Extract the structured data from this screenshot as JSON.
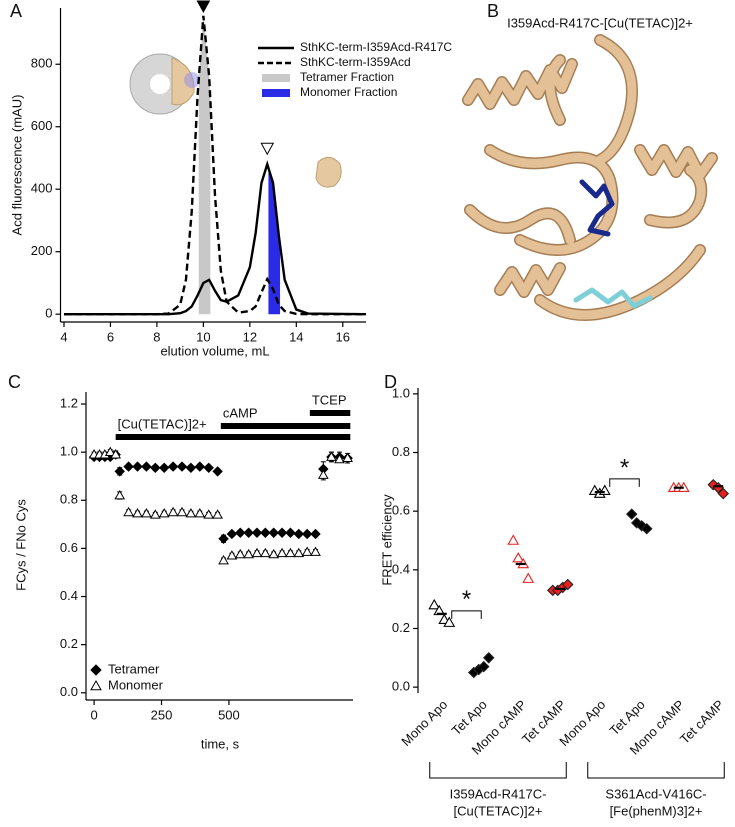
{
  "structure": {
    "panel_label": "B",
    "title": "I359Acd-R417C-[Cu(TETAC)]2+"
  },
  "chart_data": [
    {
      "type": "line",
      "panel_label": "A",
      "x_label": "elution volume,  mL",
      "y_label": "Acd fluorescence (mAU)",
      "xlim": [
        3.85,
        17
      ],
      "xticks": [
        4,
        6,
        8,
        10,
        12,
        14,
        16
      ],
      "ylim": [
        -25,
        980
      ],
      "yticks": [
        0,
        200,
        400,
        600,
        800
      ],
      "x": [
        4,
        8,
        8.5,
        9,
        9.25,
        9.5,
        9.75,
        10,
        10.25,
        10.5,
        10.75,
        11,
        11.5,
        12,
        12.25,
        12.5,
        12.75,
        13,
        13.25,
        13.5,
        14,
        14.5,
        17
      ],
      "series": [
        {
          "name": "SthKC-term-I359Acd-R417C",
          "color": "#000000",
          "line_style": "solid",
          "values": [
            0,
            0,
            0,
            3,
            10,
            25,
            60,
            100,
            110,
            75,
            45,
            40,
            60,
            150,
            260,
            420,
            480,
            420,
            250,
            110,
            15,
            2,
            0
          ]
        },
        {
          "name": "SthKC-term-I359Acd",
          "color": "#000000",
          "line_style": "dashed",
          "values": [
            0,
            0,
            2,
            30,
            110,
            330,
            700,
            955,
            760,
            380,
            140,
            40,
            5,
            10,
            25,
            70,
            112,
            80,
            30,
            10,
            1,
            0,
            0
          ]
        }
      ],
      "fractions": [
        {
          "name": "Tetramer Fraction",
          "color": "#c8c8c8",
          "range": [
            9.8,
            10.3
          ]
        },
        {
          "name": "Monomer Fraction",
          "color": "#2b2be6",
          "range": [
            12.8,
            13.3
          ]
        }
      ]
    },
    {
      "type": "scatter",
      "panel_label": "C",
      "x_label": "time, s",
      "y_label": "FCys / FNo Cys",
      "xlim": [
        -30,
        960
      ],
      "xticks": [
        0,
        250,
        500
      ],
      "ylim": [
        -0.03,
        1.25
      ],
      "yticks": [
        {
          "value": 0,
          "label": "0.0"
        },
        {
          "value": 0.2,
          "label": "0.2"
        },
        {
          "value": 0.4,
          "label": "0.4"
        },
        {
          "value": 0.6,
          "label": "0.6"
        },
        {
          "value": 0.8,
          "label": "0.8"
        },
        {
          "value": 1.0,
          "label": "1.0"
        },
        {
          "value": 1.2,
          "label": "1.2"
        }
      ],
      "legend": "bottom-left",
      "x": [
        0,
        20,
        40,
        60,
        80,
        95,
        128,
        161,
        194,
        227,
        260,
        293,
        326,
        359,
        392,
        425,
        458,
        480,
        511,
        542,
        573,
        604,
        635,
        666,
        697,
        728,
        759,
        790,
        821,
        850,
        880,
        910,
        940
      ],
      "series": [
        {
          "name": "Tetramer",
          "marker": "diamond",
          "color": "#000000",
          "values": [
            0.98,
            0.98,
            0.98,
            0.98,
            0.99,
            0.92,
            0.94,
            0.94,
            0.94,
            0.935,
            0.935,
            0.94,
            0.94,
            0.935,
            0.94,
            0.935,
            0.92,
            0.64,
            0.66,
            0.665,
            0.665,
            0.665,
            0.665,
            0.665,
            0.665,
            0.665,
            0.66,
            0.66,
            0.66,
            0.93,
            0.98,
            0.98,
            0.975
          ],
          "errors": [
            0.01,
            0.01,
            0.01,
            0.01,
            0.015,
            0.015,
            0.01,
            0.01,
            0.01,
            0.01,
            0.01,
            0.01,
            0.01,
            0.01,
            0.01,
            0.01,
            0.01,
            0.015,
            0.01,
            0.01,
            0.01,
            0.01,
            0.01,
            0.01,
            0.01,
            0.01,
            0.01,
            0.01,
            0.01,
            0.03,
            0.02,
            0.02,
            0.02
          ]
        },
        {
          "name": "Monomer",
          "marker": "triangle",
          "color": "#000000",
          "values": [
            0.99,
            0.99,
            0.99,
            1.0,
            0.99,
            0.82,
            0.75,
            0.745,
            0.745,
            0.74,
            0.745,
            0.75,
            0.75,
            0.745,
            0.745,
            0.74,
            0.74,
            0.55,
            0.57,
            0.575,
            0.575,
            0.58,
            0.58,
            0.575,
            0.58,
            0.58,
            0.58,
            0.585,
            0.585,
            0.905,
            0.98,
            0.97,
            0.975
          ],
          "errors": [
            0.01,
            0.01,
            0.01,
            0.01,
            0.01,
            0.015,
            0.01,
            0.01,
            0.01,
            0.01,
            0.01,
            0.01,
            0.01,
            0.01,
            0.01,
            0.01,
            0.01,
            0.01,
            0.01,
            0.01,
            0.01,
            0.01,
            0.01,
            0.01,
            0.01,
            0.01,
            0.01,
            0.01,
            0.01,
            0.02,
            0.02,
            0.01,
            0.01
          ]
        }
      ],
      "treatments": [
        {
          "label": "[Cu(TETAC)]2+",
          "start": 80,
          "end": 950
        },
        {
          "label": "cAMP",
          "start": 470,
          "end": 950
        },
        {
          "label": "TCEP",
          "start": 800,
          "end": 950
        }
      ]
    },
    {
      "type": "strip",
      "panel_label": "D",
      "y_label": "FRET efficiency",
      "ylim": [
        -0.02,
        1.02
      ],
      "yticks": [
        {
          "value": 0,
          "label": "0.0"
        },
        {
          "value": 0.2,
          "label": "0.2"
        },
        {
          "value": 0.4,
          "label": "0.4"
        },
        {
          "value": 0.6,
          "label": "0.6"
        },
        {
          "value": 0.8,
          "label": "0.8"
        },
        {
          "value": 1.0,
          "label": "1.0"
        }
      ],
      "categories": [
        "Mono Apo",
        "Tet Apo",
        "Mono cAMP",
        "Tet cAMP",
        "Mono Apo",
        "Tet Apo",
        "Mono cAMP",
        "Tet cAMP"
      ],
      "groups": [
        {
          "label": [
            "I359Acd-R417C-",
            "[Cu(TETAC)]2+"
          ]
        },
        {
          "label": [
            "S361Acd-V416C-",
            "[Fe(phenM)3]2+"
          ]
        }
      ],
      "points": [
        {
          "marker": "triangle",
          "color": "#000000",
          "values": [
            0.28,
            0.26,
            0.23,
            0.22
          ]
        },
        {
          "marker": "diamond",
          "color": "#000000",
          "values": [
            0.05,
            0.06,
            0.07,
            0.1
          ]
        },
        {
          "marker": "triangle",
          "color": "#e8201e",
          "values": [
            0.5,
            0.44,
            0.42,
            0.37
          ]
        },
        {
          "marker": "diamond",
          "color": "#e8201e",
          "values": [
            0.33,
            0.33,
            0.34,
            0.35
          ]
        },
        {
          "marker": "triangle",
          "color": "#000000",
          "values": [
            0.67,
            0.66,
            0.67
          ]
        },
        {
          "marker": "diamond",
          "color": "#000000",
          "values": [
            0.59,
            0.56,
            0.55,
            0.54
          ]
        },
        {
          "marker": "triangle",
          "color": "#e8201e",
          "values": [
            0.68,
            0.68,
            0.68
          ]
        },
        {
          "marker": "diamond",
          "color": "#e8201e",
          "values": [
            0.69,
            0.68,
            0.66
          ]
        }
      ],
      "means": [
        0.25,
        0.065,
        0.42,
        0.335,
        0.665,
        0.555,
        0.68,
        0.685
      ],
      "annotations": [
        {
          "text": "*",
          "between": [
            0,
            1
          ],
          "y": 0.26
        },
        {
          "text": "*",
          "between": [
            4,
            5
          ],
          "y": 0.71
        }
      ]
    }
  ]
}
